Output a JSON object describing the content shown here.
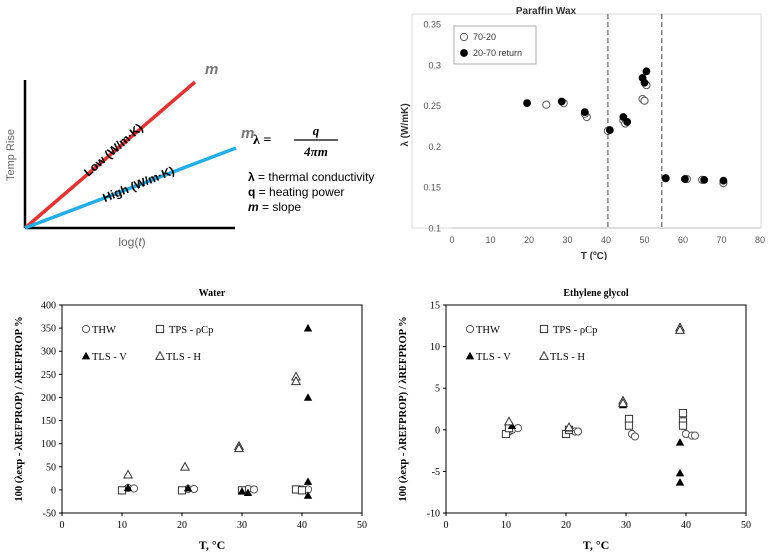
{
  "chart_data": [
    {
      "type": "line",
      "title": "",
      "xlabel": "log(t)",
      "ylabel": "Temp Rise",
      "series": [
        {
          "name": "Low (W/m·K)",
          "slope_label": "m",
          "color": "#e8312f",
          "y": [
            0,
            1.0
          ]
        },
        {
          "name": "High (W/m·K)",
          "slope_label": "m",
          "color": "#22aee6",
          "y": [
            0,
            0.55
          ]
        }
      ],
      "equation": {
        "lhs": "λ =",
        "numerator": "q",
        "denominator": "4πm"
      },
      "definitions": [
        {
          "sym": "λ",
          "text": " = thermal conductivity"
        },
        {
          "sym": "q",
          "text": " = heating power"
        },
        {
          "sym": "m",
          "text": " = slope"
        }
      ]
    },
    {
      "type": "scatter",
      "title": "Paraffin Wax",
      "xlabel": "T (ºC)",
      "ylabel": "λ (W/mK)",
      "xlim": [
        0,
        80
      ],
      "ylim": [
        0.1,
        0.35
      ],
      "xticks": [
        0,
        10,
        20,
        30,
        40,
        50,
        60,
        70,
        80
      ],
      "yticks": [
        0.1,
        0.15,
        0.2,
        0.25,
        0.3,
        0.35
      ],
      "ytick_labels": [
        "0.1",
        "0.15",
        "0.2",
        "0.25",
        "0.3",
        "0.35"
      ],
      "vlines": [
        40.5,
        54.5
      ],
      "legend_position": "top-left",
      "series": [
        {
          "name": "70-20",
          "marker": "open-circle",
          "points": [
            [
              70.5,
              0.155
            ],
            [
              65,
              0.159
            ],
            [
              61,
              0.16
            ],
            [
              55.5,
              0.161
            ],
            [
              50.5,
              0.275
            ],
            [
              49.5,
              0.258
            ],
            [
              50,
              0.256
            ],
            [
              44.5,
              0.232
            ],
            [
              45,
              0.228
            ],
            [
              40.5,
              0.219
            ],
            [
              35,
              0.236
            ],
            [
              34.5,
              0.24
            ],
            [
              29,
              0.253
            ],
            [
              24.5,
              0.251
            ]
          ]
        },
        {
          "name": "20-70 return",
          "marker": "filled-circle",
          "points": [
            [
              19.5,
              0.253
            ],
            [
              28.5,
              0.255
            ],
            [
              34.5,
              0.242
            ],
            [
              41,
              0.22
            ],
            [
              44.5,
              0.236
            ],
            [
              45.5,
              0.23
            ],
            [
              49.5,
              0.284
            ],
            [
              50,
              0.278
            ],
            [
              50.5,
              0.292
            ],
            [
              55.5,
              0.161
            ],
            [
              60.5,
              0.16
            ],
            [
              65.5,
              0.159
            ],
            [
              70.5,
              0.158
            ]
          ]
        }
      ]
    },
    {
      "type": "scatter",
      "title": "Water",
      "xlabel": "T, °C",
      "ylabel": "100 (λexp - λREFPROP) / λREFPROP %",
      "xlim": [
        0,
        50
      ],
      "ylim": [
        -50,
        400
      ],
      "xticks": [
        0,
        10,
        20,
        30,
        40,
        50
      ],
      "yticks": [
        -50,
        0,
        50,
        100,
        150,
        200,
        250,
        300,
        350,
        400
      ],
      "legend": [
        "THW",
        "TPS - ρCp",
        "TLS - V",
        "TLS - H"
      ],
      "series": [
        {
          "name": "THW",
          "marker": "open-circle",
          "points": [
            [
              11,
              4
            ],
            [
              12,
              3
            ],
            [
              21,
              2
            ],
            [
              22,
              2
            ],
            [
              31,
              2
            ],
            [
              32,
              1
            ],
            [
              40,
              1
            ],
            [
              41,
              1
            ]
          ]
        },
        {
          "name": "TPS - ρCp",
          "marker": "open-square",
          "points": [
            [
              10,
              -1
            ],
            [
              20,
              -1
            ],
            [
              30,
              -1
            ],
            [
              39,
              1
            ],
            [
              40,
              -1
            ]
          ]
        },
        {
          "name": "TLS - V",
          "marker": "filled-triangle",
          "points": [
            [
              11,
              5
            ],
            [
              21,
              4
            ],
            [
              30,
              -3
            ],
            [
              31,
              -6
            ],
            [
              41,
              -12
            ],
            [
              41,
              18
            ],
            [
              41,
              200
            ],
            [
              41,
              350
            ]
          ]
        },
        {
          "name": "TLS - H",
          "marker": "open-triangle",
          "points": [
            [
              11,
              33
            ],
            [
              20.5,
              50
            ],
            [
              29.5,
              95
            ],
            [
              29.5,
              90
            ],
            [
              39,
              245
            ],
            [
              39,
              235
            ]
          ]
        }
      ]
    },
    {
      "type": "scatter",
      "title": "Ethylene glycol",
      "xlabel": "T, °C",
      "ylabel": "100 (λexp - λREFPROP) / λREFPROP %",
      "xlim": [
        0,
        50
      ],
      "ylim": [
        -10,
        15
      ],
      "xticks": [
        0,
        10,
        20,
        30,
        40,
        50
      ],
      "yticks": [
        -10,
        -5,
        0,
        5,
        10,
        15
      ],
      "legend": [
        "THW",
        "TPS - ρCp",
        "TLS - V",
        "TLS - H"
      ],
      "series": [
        {
          "name": "THW",
          "marker": "open-circle",
          "points": [
            [
              10.5,
              -0.2
            ],
            [
              11,
              0
            ],
            [
              12,
              0.2
            ],
            [
              20.5,
              0
            ],
            [
              21.5,
              -0.2
            ],
            [
              22,
              -0.2
            ],
            [
              31,
              -0.5
            ],
            [
              31.5,
              -0.8
            ],
            [
              40,
              -0.5
            ],
            [
              41,
              -0.7
            ],
            [
              41.5,
              -0.7
            ]
          ]
        },
        {
          "name": "TPS - ρCp",
          "marker": "open-square",
          "points": [
            [
              10,
              -0.5
            ],
            [
              10.5,
              0.2
            ],
            [
              20,
              -0.5
            ],
            [
              20.5,
              0
            ],
            [
              30.5,
              1.3
            ],
            [
              30.5,
              0.5
            ],
            [
              39.5,
              1
            ],
            [
              39.5,
              2
            ],
            [
              39.5,
              0.5
            ]
          ]
        },
        {
          "name": "TLS - V",
          "marker": "filled-triangle",
          "points": [
            [
              11,
              0.5
            ],
            [
              20.5,
              0.2
            ],
            [
              29.5,
              3
            ],
            [
              39,
              -1.5
            ],
            [
              39,
              -5.2
            ],
            [
              39,
              -6.3
            ]
          ]
        },
        {
          "name": "TLS - H",
          "marker": "open-triangle",
          "points": [
            [
              10.5,
              1
            ],
            [
              20.5,
              0.3
            ],
            [
              29.5,
              3.5
            ],
            [
              29.5,
              3.2
            ],
            [
              39,
              12.3
            ],
            [
              39,
              12
            ]
          ]
        }
      ]
    }
  ]
}
